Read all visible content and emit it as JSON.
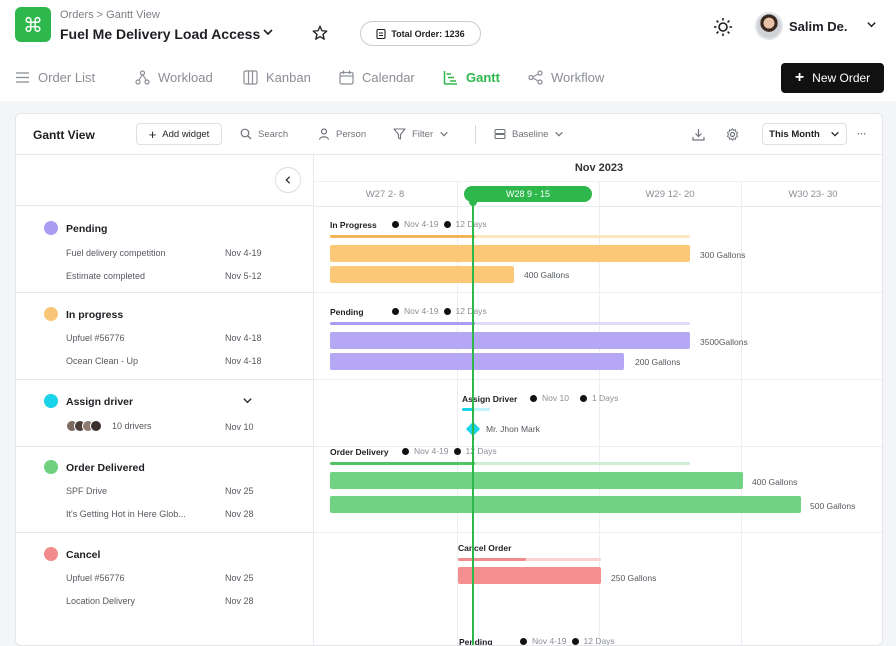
{
  "header": {
    "logo_glyph": "⌘",
    "breadcrumb": "Orders > Gantt View",
    "project_title": "Fuel Me Delivery Load Access",
    "total_order": "Total Order: 1236",
    "user_name": "Salim De."
  },
  "nav": {
    "tabs": [
      {
        "label": "Order List",
        "icon": "list-icon"
      },
      {
        "label": "Workload",
        "icon": "workload-icon"
      },
      {
        "label": "Kanban",
        "icon": "kanban-icon"
      },
      {
        "label": "Calendar",
        "icon": "calendar-icon"
      },
      {
        "label": "Gantt",
        "icon": "gantt-icon",
        "active": true
      },
      {
        "label": "Workflow",
        "icon": "workflow-icon"
      }
    ],
    "new_order": "New Order"
  },
  "toolbar": {
    "title": "Gantt View",
    "add_widget": "Add widget",
    "search": "Search",
    "person": "Person",
    "filter": "Filter",
    "baseline": "Baseline",
    "period": "This Month"
  },
  "groups": [
    {
      "name": "Pending",
      "color": "#a99cf2",
      "tasks": [
        {
          "name": "Fuel delivery competition",
          "date": "Nov 4-19"
        },
        {
          "name": "Estimate completed",
          "date": "Nov 5-12"
        }
      ]
    },
    {
      "name": "In progress",
      "color": "#f9c579",
      "tasks": [
        {
          "name": "Upfuel #56776",
          "date": "Nov 4-18"
        },
        {
          "name": "Ocean Clean - Up",
          "date": "Nov 4-18"
        }
      ]
    },
    {
      "name": "Assign driver",
      "color": "#19d3e8",
      "tasks": [
        {
          "name": "10 drivers",
          "date": "Nov 10"
        }
      ]
    },
    {
      "name": "Order Delivered",
      "color": "#6fd17f",
      "tasks": [
        {
          "name": "SPF Drive",
          "date": "Nov 25"
        },
        {
          "name": "It's Getting Hot in Here Glob...",
          "date": "Nov 28"
        }
      ]
    },
    {
      "name": "Cancel",
      "color": "#f28b8b",
      "tasks": [
        {
          "name": "Upfuel #56776",
          "date": "Nov 25"
        },
        {
          "name": "Location Delivery",
          "date": "Nov 28"
        }
      ]
    }
  ],
  "gantt": {
    "month": "Nov 2023",
    "weeks": [
      "W27 2- 8",
      "W28 9 - 15",
      "W29 12- 20",
      "W30 23- 30"
    ],
    "rows": {
      "in_progress": {
        "label": "In Progress",
        "range": "Nov 4-19",
        "days": "12 Days",
        "bars": [
          "300 Gallons",
          "400 Gallons"
        ]
      },
      "pending": {
        "label": "Pending",
        "range": "Nov 4-19",
        "days": "12 Days",
        "bars": [
          "3500Gallons",
          "200 Gallons"
        ]
      },
      "assign": {
        "label": "Assign Driver",
        "range": "Nov 10",
        "days": "1 Days",
        "driver": "Mr. Jhon Mark"
      },
      "delivery": {
        "label": "Order Delivery",
        "range": "Nov 4-19",
        "days": "12 Days",
        "bars": [
          "400 Gallons",
          "500 Gallons"
        ]
      },
      "cancel": {
        "label": "Cancel Order",
        "bars": [
          "250 Gallons"
        ]
      },
      "pending2": {
        "label": "Pending",
        "range": "Nov 4-19",
        "days": "12 Days"
      }
    }
  }
}
